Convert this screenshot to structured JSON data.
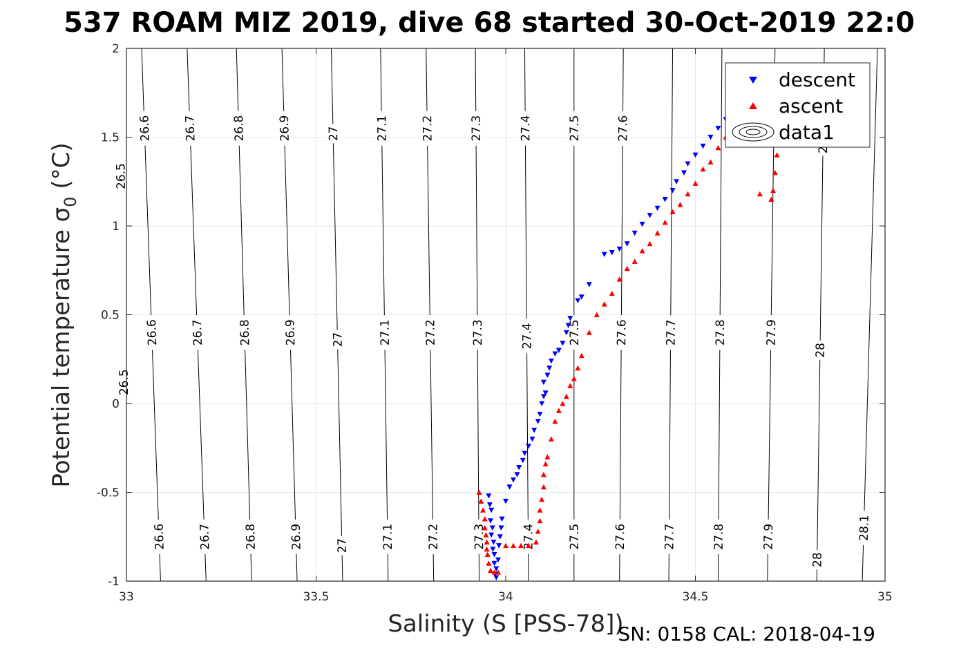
{
  "title": "537 ROAM MIZ 2019, dive 68 started 30-Oct-2019 22:0",
  "footer": "SN: 0158  CAL: 2018-04-19",
  "legend": [
    "descent",
    "ascent",
    "data1"
  ],
  "colors": {
    "descent": "#0000ff",
    "ascent": "#ff0000",
    "contour": "#000000",
    "grid": "#e6e6e6"
  },
  "chart_data": {
    "type": "scatter",
    "xlabel": "Salinity (S [PSS-78])",
    "ylabel": "Potential temperature σ",
    "ylabel_sub": "0",
    "ylabel_unit": " (°C)",
    "xlim": [
      33,
      35
    ],
    "ylim": [
      -1,
      2
    ],
    "xticks": [
      33,
      33.5,
      34,
      34.5,
      35
    ],
    "yticks": [
      -1,
      -0.5,
      0,
      0.5,
      1,
      1.5,
      2
    ],
    "xtick_labels": [
      "33",
      "33.5",
      "34",
      "34.5",
      "35"
    ],
    "ytick_labels": [
      "-1",
      "-0.5",
      "0",
      "0.5",
      "1",
      "1.5",
      "2"
    ],
    "grid": true,
    "legend_position": "top-right",
    "density_contours": {
      "levels": [
        26.5,
        26.6,
        26.7,
        26.8,
        26.9,
        27.0,
        27.1,
        27.2,
        27.3,
        27.4,
        27.5,
        27.6,
        27.7,
        27.8,
        27.9,
        28.0,
        28.1
      ],
      "line_x_at_ymin": [
        33.0,
        33.09,
        33.21,
        33.33,
        33.45,
        33.57,
        33.69,
        33.81,
        33.93,
        34.06,
        34.18,
        34.3,
        34.43,
        34.56,
        34.69,
        34.82,
        34.94
      ],
      "line_x_at_ymax": [
        32.98,
        33.04,
        33.16,
        33.29,
        33.41,
        33.54,
        33.67,
        33.79,
        33.92,
        34.05,
        34.18,
        34.31,
        34.44,
        34.57,
        34.71,
        34.84,
        34.98
      ],
      "labels_top": [
        {
          "text": "26.5",
          "level": 26.5,
          "y": 1.28
        },
        {
          "text": "26.6",
          "level": 26.6,
          "y": 1.55
        },
        {
          "text": "26.7",
          "level": 26.7,
          "y": 1.55
        },
        {
          "text": "26.8",
          "level": 26.8,
          "y": 1.55
        },
        {
          "text": "26.9",
          "level": 26.9,
          "y": 1.55
        },
        {
          "text": "27",
          "level": 27.0,
          "y": 1.52
        },
        {
          "text": "27.1",
          "level": 27.1,
          "y": 1.55
        },
        {
          "text": "27.2",
          "level": 27.2,
          "y": 1.55
        },
        {
          "text": "27.3",
          "level": 27.3,
          "y": 1.55
        },
        {
          "text": "27.4",
          "level": 27.4,
          "y": 1.55
        },
        {
          "text": "27.5",
          "level": 27.5,
          "y": 1.55
        },
        {
          "text": "27.6",
          "level": 27.6,
          "y": 1.55
        },
        {
          "text": "28",
          "level": 28.0,
          "y": 1.45
        }
      ],
      "labels_mid": [
        {
          "text": "26.5",
          "level": 26.5,
          "y": 0.12
        },
        {
          "text": "26.6",
          "level": 26.6,
          "y": 0.4
        },
        {
          "text": "26.7",
          "level": 26.7,
          "y": 0.4
        },
        {
          "text": "26.8",
          "level": 26.8,
          "y": 0.4
        },
        {
          "text": "26.9",
          "level": 26.9,
          "y": 0.4
        },
        {
          "text": "27",
          "level": 27.0,
          "y": 0.36
        },
        {
          "text": "27.1",
          "level": 27.1,
          "y": 0.4
        },
        {
          "text": "27.2",
          "level": 27.2,
          "y": 0.4
        },
        {
          "text": "27.3",
          "level": 27.3,
          "y": 0.4
        },
        {
          "text": "27.4",
          "level": 27.4,
          "y": 0.38
        },
        {
          "text": "27.5",
          "level": 27.5,
          "y": 0.4
        },
        {
          "text": "27.6",
          "level": 27.6,
          "y": 0.4
        },
        {
          "text": "27.7",
          "level": 27.7,
          "y": 0.4
        },
        {
          "text": "27.8",
          "level": 27.8,
          "y": 0.4
        },
        {
          "text": "27.9",
          "level": 27.9,
          "y": 0.4
        },
        {
          "text": "28",
          "level": 28.0,
          "y": 0.3
        }
      ],
      "labels_bottom": [
        {
          "text": "26.6",
          "level": 26.6,
          "y": -0.75
        },
        {
          "text": "26.7",
          "level": 26.7,
          "y": -0.75
        },
        {
          "text": "26.8",
          "level": 26.8,
          "y": -0.75
        },
        {
          "text": "26.9",
          "level": 26.9,
          "y": -0.75
        },
        {
          "text": "27",
          "level": 27.0,
          "y": -0.8
        },
        {
          "text": "27.1",
          "level": 27.1,
          "y": -0.75
        },
        {
          "text": "27.2",
          "level": 27.2,
          "y": -0.75
        },
        {
          "text": "27.3",
          "level": 27.3,
          "y": -0.75
        },
        {
          "text": "27.4",
          "level": 27.4,
          "y": -0.75
        },
        {
          "text": "27.5",
          "level": 27.5,
          "y": -0.75
        },
        {
          "text": "27.6",
          "level": 27.6,
          "y": -0.75
        },
        {
          "text": "27.7",
          "level": 27.7,
          "y": -0.75
        },
        {
          "text": "27.8",
          "level": 27.8,
          "y": -0.75
        },
        {
          "text": "27.9",
          "level": 27.9,
          "y": -0.75
        },
        {
          "text": "28",
          "level": 28.0,
          "y": -0.88
        },
        {
          "text": "28.1",
          "level": 28.1,
          "y": -0.7
        }
      ]
    },
    "series": [
      {
        "name": "descent",
        "marker": "triangle-down",
        "x": [
          33.955,
          33.958,
          33.962,
          33.96,
          33.965,
          33.962,
          33.968,
          33.966,
          33.97,
          33.97,
          33.975,
          33.972,
          33.975,
          33.98,
          33.982,
          33.985,
          33.988,
          33.99,
          34.0,
          34.01,
          34.02,
          34.03,
          34.035,
          34.045,
          34.05,
          34.06,
          34.07,
          34.075,
          34.085,
          34.09,
          34.095,
          34.1,
          34.105,
          34.1,
          34.11,
          34.115,
          34.12,
          34.13,
          34.14,
          34.15,
          34.16,
          34.165,
          34.17,
          34.19,
          34.2,
          34.22,
          34.26,
          34.28,
          34.3,
          34.32,
          34.34,
          34.36,
          34.38,
          34.4,
          34.42,
          34.44,
          34.45,
          34.47,
          34.48,
          34.5,
          34.52,
          34.54,
          34.56,
          34.58,
          34.6
        ],
        "y": [
          -0.52,
          -0.57,
          -0.6,
          -0.66,
          -0.7,
          -0.74,
          -0.78,
          -0.82,
          -0.85,
          -0.9,
          -0.93,
          -0.96,
          -0.98,
          -0.88,
          -0.8,
          -0.75,
          -0.7,
          -0.65,
          -0.55,
          -0.47,
          -0.43,
          -0.4,
          -0.36,
          -0.32,
          -0.28,
          -0.24,
          -0.2,
          -0.15,
          -0.1,
          -0.06,
          0.0,
          0.04,
          0.06,
          0.12,
          0.16,
          0.2,
          0.24,
          0.28,
          0.3,
          0.34,
          0.4,
          0.44,
          0.48,
          0.58,
          0.6,
          0.67,
          0.84,
          0.85,
          0.87,
          0.9,
          0.96,
          1.01,
          1.06,
          1.1,
          1.15,
          1.2,
          1.25,
          1.3,
          1.35,
          1.4,
          1.45,
          1.5,
          1.55,
          1.6,
          1.64
        ]
      },
      {
        "name": "ascent",
        "marker": "triangle-up",
        "x": [
          33.93,
          33.935,
          33.94,
          33.945,
          33.945,
          33.948,
          33.95,
          33.95,
          33.952,
          33.955,
          33.96,
          33.97,
          33.98,
          34.0,
          34.02,
          34.04,
          34.06,
          34.08,
          34.085,
          34.09,
          34.09,
          34.095,
          34.1,
          34.1,
          34.105,
          34.11,
          34.12,
          34.13,
          34.14,
          34.15,
          34.16,
          34.17,
          34.18,
          34.19,
          34.2,
          34.22,
          34.24,
          34.26,
          34.28,
          34.3,
          34.32,
          34.34,
          34.36,
          34.38,
          34.4,
          34.42,
          34.44,
          34.46,
          34.48,
          34.5,
          34.52,
          34.54,
          34.56,
          34.58,
          34.6,
          34.62,
          34.64,
          34.67,
          34.7,
          34.705,
          34.71,
          34.715,
          34.72,
          34.72
        ],
        "y": [
          -0.5,
          -0.55,
          -0.6,
          -0.65,
          -0.7,
          -0.74,
          -0.78,
          -0.82,
          -0.85,
          -0.9,
          -0.94,
          -0.95,
          -0.95,
          -0.8,
          -0.8,
          -0.8,
          -0.8,
          -0.78,
          -0.72,
          -0.66,
          -0.6,
          -0.54,
          -0.47,
          -0.4,
          -0.34,
          -0.3,
          -0.2,
          -0.1,
          -0.04,
          0.0,
          0.04,
          0.1,
          0.14,
          0.2,
          0.27,
          0.4,
          0.5,
          0.56,
          0.62,
          0.7,
          0.76,
          0.8,
          0.86,
          0.9,
          0.96,
          1.02,
          1.08,
          1.12,
          1.18,
          1.24,
          1.32,
          1.36,
          1.44,
          1.5,
          1.56,
          1.6,
          1.62,
          1.18,
          1.15,
          1.2,
          1.3,
          1.4,
          1.5,
          1.6
        ]
      }
    ]
  }
}
